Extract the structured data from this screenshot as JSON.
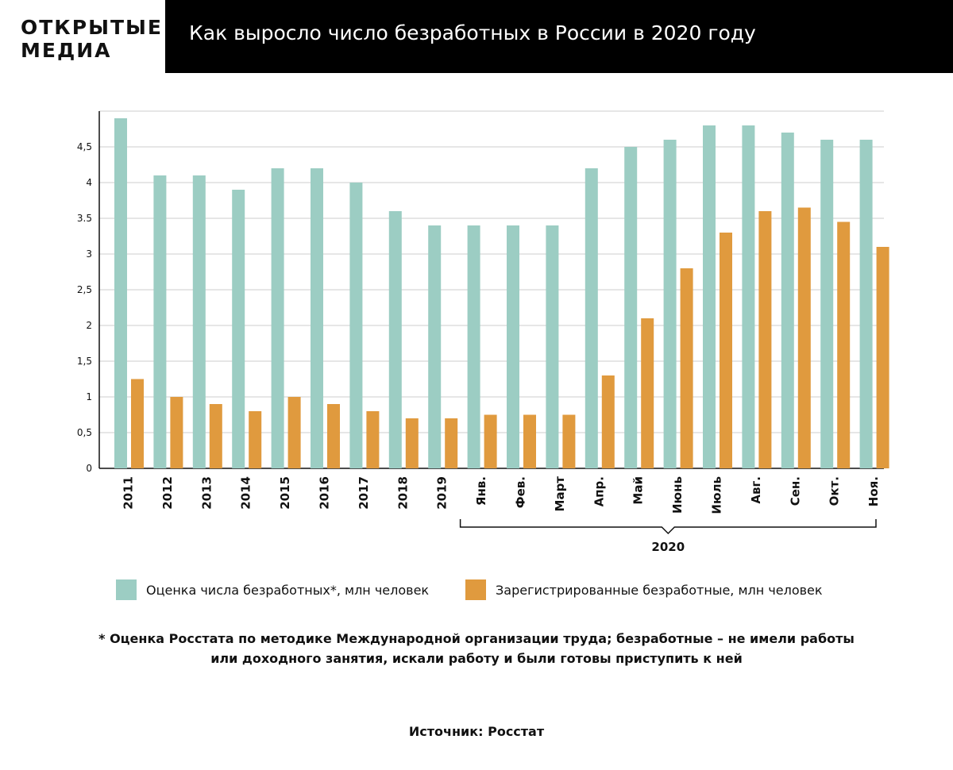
{
  "logo": {
    "line1": "ОТКРЫТЫЕ",
    "line2": "МЕДИА"
  },
  "colors": {
    "estimated": "#9ccdc3",
    "registered": "#e09a3e",
    "grid": "#cccccc",
    "title_bg": "#000000"
  },
  "chart_data": {
    "type": "bar",
    "title": "Как выросло число безработных в России в 2020 году",
    "categories": [
      "2011",
      "2012",
      "2013",
      "2014",
      "2015",
      "2016",
      "2017",
      "2018",
      "2019",
      "Янв.",
      "Фев.",
      "Март",
      "Апр.",
      "Май",
      "Июнь",
      "Июль",
      "Авг.",
      "Сен.",
      "Окт.",
      "Ноя."
    ],
    "series": [
      {
        "name": "Оценка числа безработных*, млн человек",
        "values": [
          4.9,
          4.1,
          4.1,
          3.9,
          4.2,
          4.2,
          4.0,
          3.6,
          3.4,
          3.4,
          3.4,
          3.4,
          4.2,
          4.5,
          4.6,
          4.8,
          4.8,
          4.7,
          4.6,
          4.6
        ]
      },
      {
        "name": "Зарегистрированные безработные, млн человек",
        "values": [
          1.25,
          1.0,
          0.9,
          0.8,
          1.0,
          0.9,
          0.8,
          0.7,
          0.7,
          0.75,
          0.75,
          0.75,
          1.3,
          2.1,
          2.8,
          3.3,
          3.6,
          3.65,
          3.45,
          3.1
        ]
      }
    ],
    "yticks": [
      "0",
      "0,5",
      "1",
      "1,5",
      "2",
      "2,5",
      "3",
      "3.5",
      "4",
      "4,5"
    ],
    "ylim": [
      0,
      5
    ],
    "group_label": "2020",
    "group_start": 9,
    "group_end": 19,
    "grid": true,
    "legend_position": "bottom"
  },
  "footnote": {
    "line1": "* Оценка Росстата по методике Международной организации труда; безработные – не имели работы",
    "line2": "или доходного занятия, искали работу и были готовы приступить к ней"
  },
  "source": "Источник: Росстат"
}
